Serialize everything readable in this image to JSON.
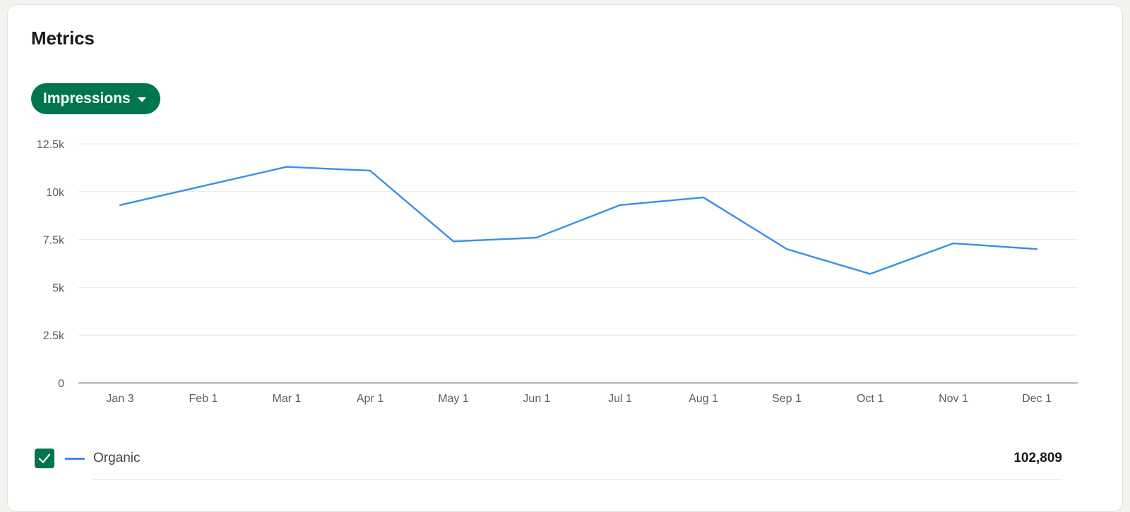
{
  "header": {
    "title": "Metrics"
  },
  "metric_selector": {
    "selected": "Impressions"
  },
  "legend": {
    "series_label": "Organic",
    "total": "102,809",
    "checked": true
  },
  "colors": {
    "accent": "#01754f",
    "series": "#378fe9",
    "grid": "#e9e9e9",
    "axis": "#8c8c8c",
    "tick_text": "#5e5e5e"
  },
  "chart_data": {
    "type": "line",
    "categories": [
      "Jan 3",
      "Feb 1",
      "Mar 1",
      "Apr 1",
      "May 1",
      "Jun 1",
      "Jul 1",
      "Aug 1",
      "Sep 1",
      "Oct 1",
      "Nov 1",
      "Dec 1"
    ],
    "series": [
      {
        "name": "Organic",
        "values": [
          9300,
          10300,
          11300,
          11100,
          7400,
          7600,
          9300,
          9700,
          7000,
          5700,
          7300,
          7000
        ]
      }
    ],
    "ylim": [
      0,
      12500
    ],
    "y_ticks": [
      {
        "value": 0,
        "label": "0"
      },
      {
        "value": 2500,
        "label": "2.5k"
      },
      {
        "value": 5000,
        "label": "5k"
      },
      {
        "value": 7500,
        "label": "7.5k"
      },
      {
        "value": 10000,
        "label": "10k"
      },
      {
        "value": 12500,
        "label": "12.5k"
      }
    ],
    "grid": true,
    "title": "",
    "xlabel": "",
    "ylabel": ""
  }
}
